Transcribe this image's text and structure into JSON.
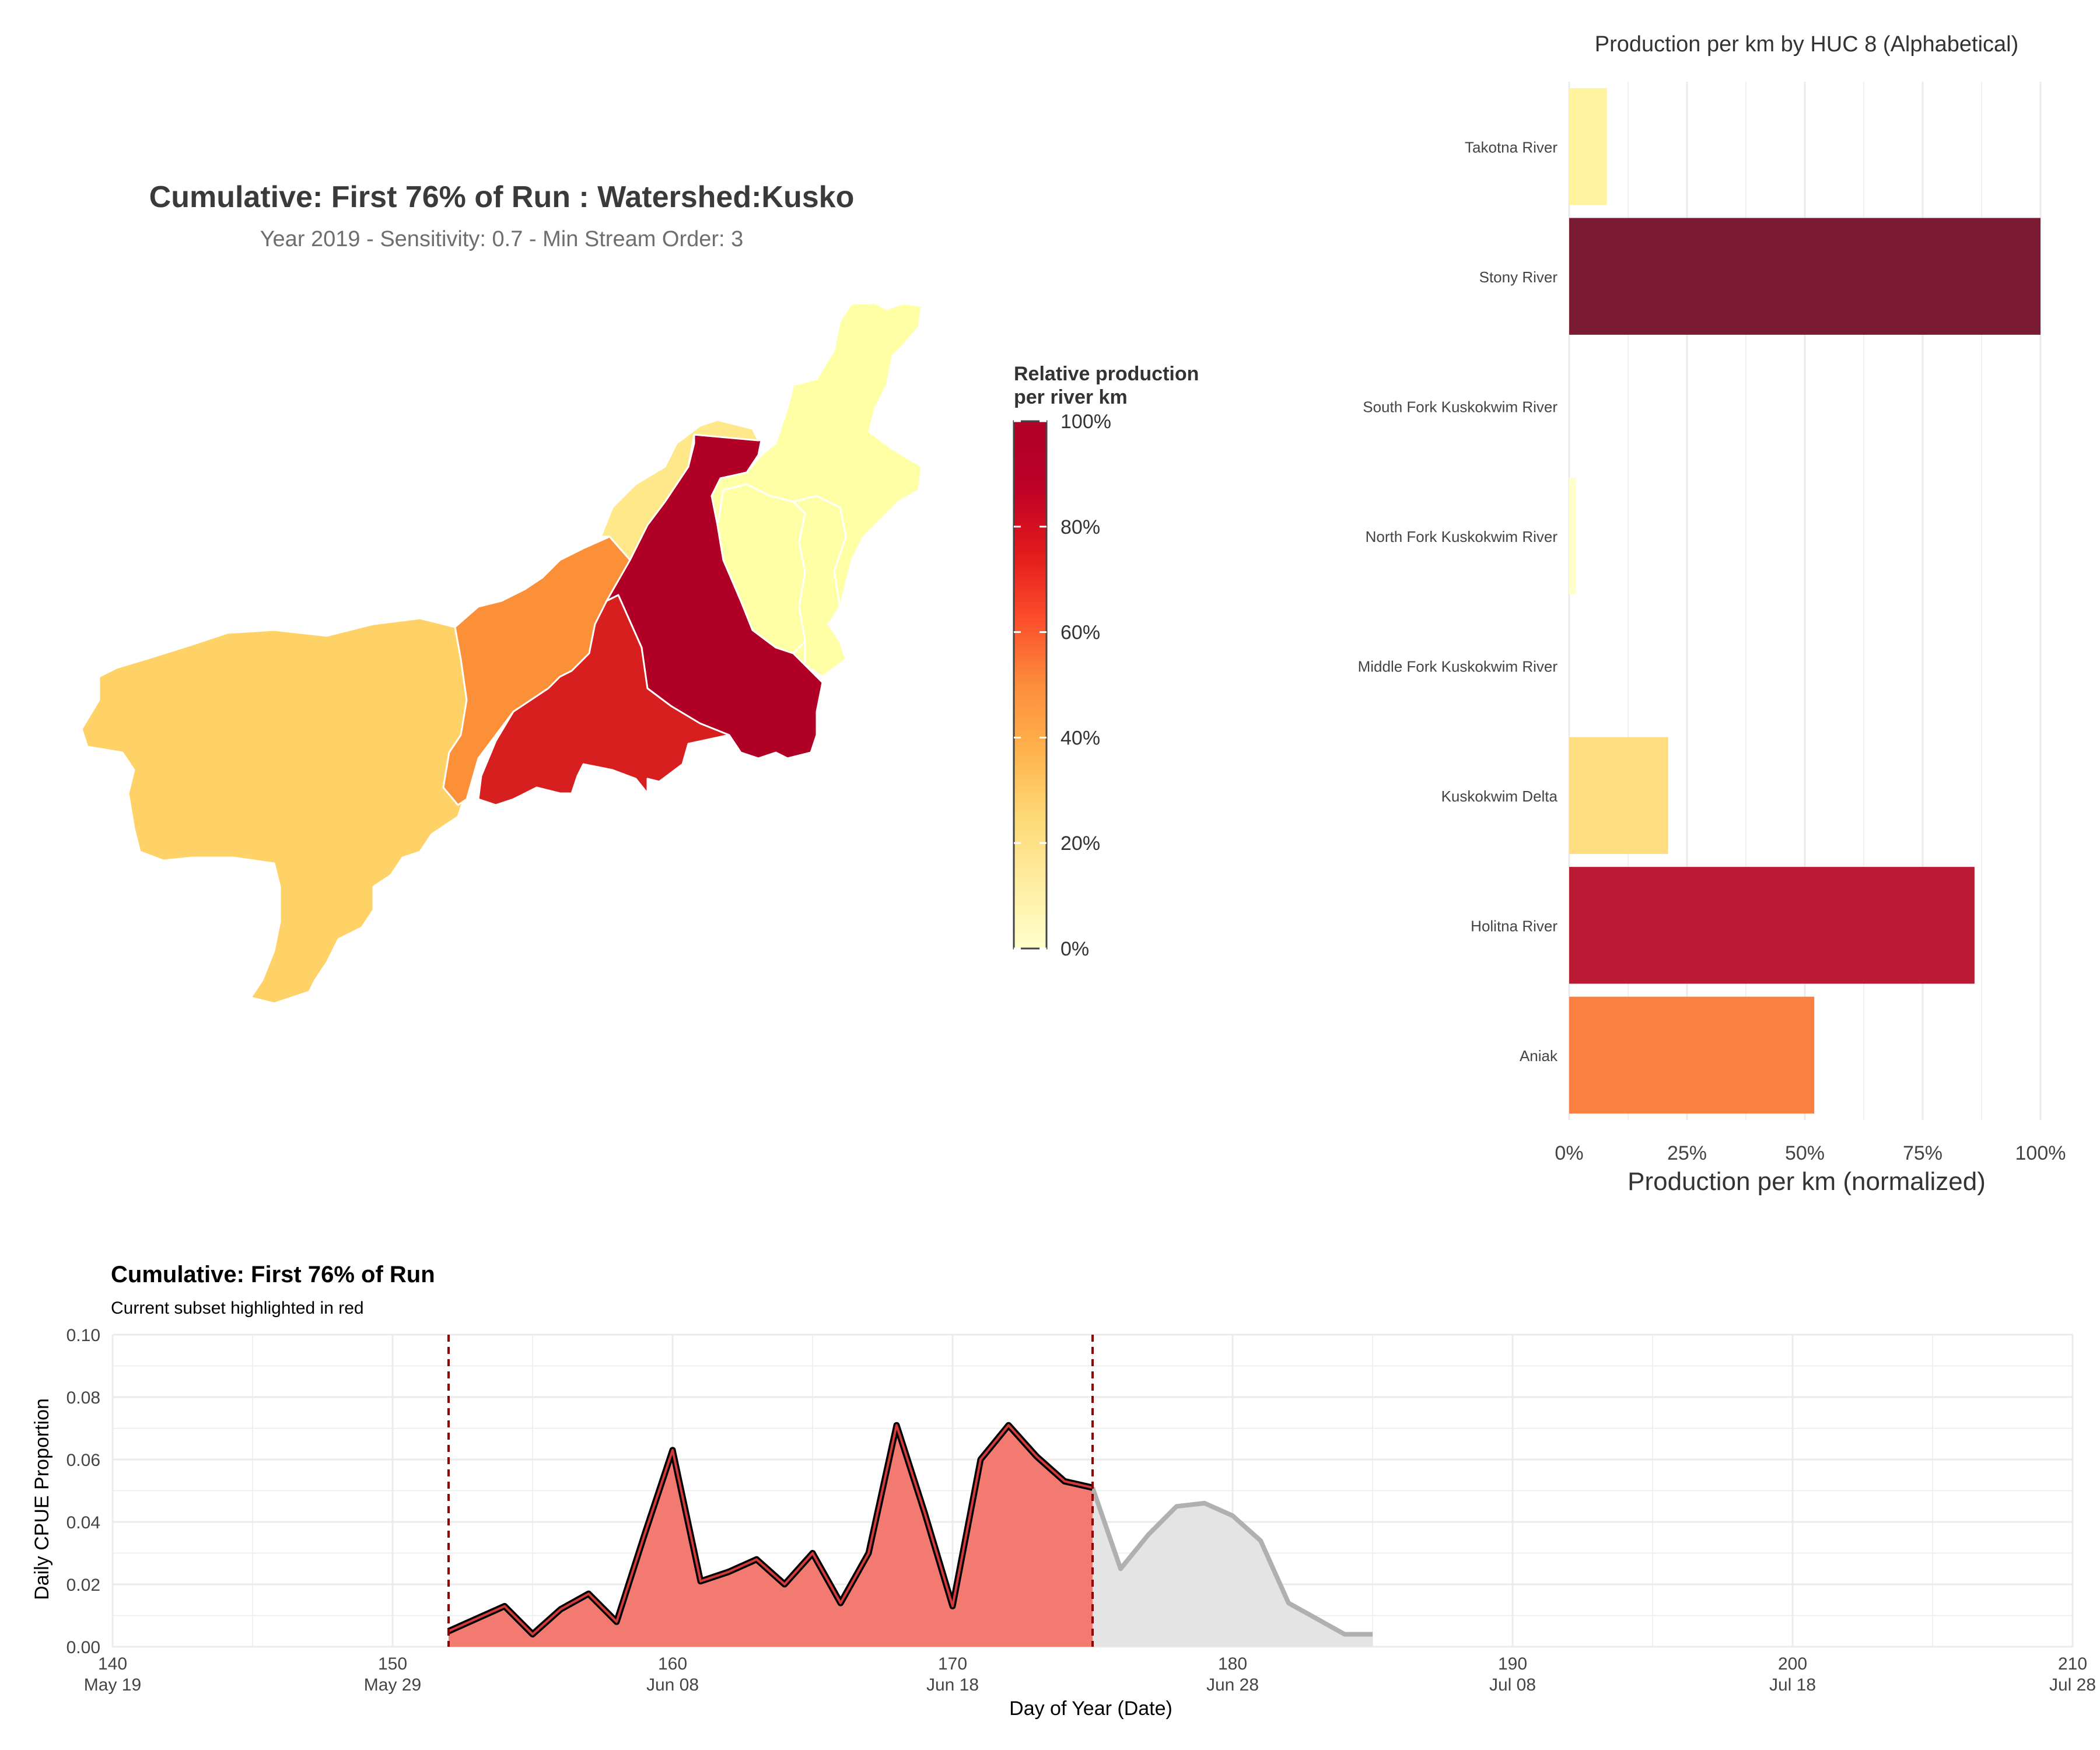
{
  "map_panel": {
    "title": "Cumulative: First 76% of Run : Watershed:Kusko",
    "subtitle": "Year 2019 - Sensitivity: 0.7 - Min Stream Order: 3",
    "legend": {
      "title_line1": "Relative production",
      "title_line2": "per river km",
      "ticks": [
        "100%",
        "80%",
        "60%",
        "40%",
        "20%",
        "0%"
      ],
      "colors": [
        "#ffffcc",
        "#ffeda0",
        "#fed976",
        "#feb24c",
        "#fd8d3c",
        "#fc4e2a",
        "#e31a1c",
        "#bd0026",
        "#b00026"
      ]
    },
    "region_colors": {
      "delta": "#fed266",
      "aniak": "#fb9038",
      "holitna": "#d81f20",
      "stony": "#b00026",
      "takotna": "#ffe88a",
      "north_fork": "#ffffa6",
      "south_fork": "#ffffa6",
      "middle_fork": "#ffffa6"
    }
  },
  "chart_data": [
    {
      "type": "bar",
      "orientation": "horizontal",
      "title": "Production per km by HUC 8 (Alphabetical)",
      "xlabel": "Production per km (normalized)",
      "ylabel": "",
      "x_ticks": [
        "0%",
        "25%",
        "50%",
        "75%",
        "100%"
      ],
      "xlim": [
        0,
        1
      ],
      "categories": [
        "Takotna River",
        "Stony River",
        "South Fork Kuskokwim River",
        "North Fork Kuskokwim River",
        "Middle Fork Kuskokwim River",
        "Kuskokwim Delta",
        "Holitna River",
        "Aniak"
      ],
      "values": [
        0.08,
        1.0,
        0.0,
        0.015,
        0.0,
        0.21,
        0.86,
        0.52
      ],
      "colors": [
        "#fff3a0",
        "#7a1a33",
        "#ffffff",
        "#ffffcc",
        "#ffffff",
        "#fedc80",
        "#bb1a35",
        "#f98040"
      ],
      "grid": true
    },
    {
      "type": "area",
      "title": "Cumulative: First 76% of Run",
      "subtitle": "Current subset highlighted in red",
      "xlabel": "Day of Year (Date)",
      "ylabel": "Daily CPUE Proportion",
      "xlim": [
        140,
        210
      ],
      "ylim": [
        0,
        0.1
      ],
      "x_ticks": [
        {
          "value": 140,
          "label": "140",
          "date": "May 19"
        },
        {
          "value": 150,
          "label": "150",
          "date": "May 29"
        },
        {
          "value": 160,
          "label": "160",
          "date": "Jun 08"
        },
        {
          "value": 170,
          "label": "170",
          "date": "Jun 18"
        },
        {
          "value": 180,
          "label": "180",
          "date": "Jun 28"
        },
        {
          "value": 190,
          "label": "190",
          "date": "Jul 08"
        },
        {
          "value": 200,
          "label": "200",
          "date": "Jul 18"
        },
        {
          "value": 210,
          "label": "210",
          "date": "Jul 28"
        }
      ],
      "y_ticks": [
        "0.00",
        "0.02",
        "0.04",
        "0.06",
        "0.08",
        "0.10"
      ],
      "y_tick_values": [
        0,
        0.02,
        0.04,
        0.06,
        0.08,
        0.1
      ],
      "subset_range": [
        152,
        175
      ],
      "series": [
        {
          "x": [
            152,
            153,
            154,
            155,
            156,
            157,
            158,
            159,
            160,
            161,
            162,
            163,
            164,
            165,
            166,
            167,
            168,
            169,
            170,
            171,
            172,
            173,
            174,
            175,
            176,
            177,
            178,
            179,
            180,
            181,
            182,
            183,
            184,
            185
          ],
          "y": [
            0.005,
            0.009,
            0.013,
            0.004,
            0.012,
            0.017,
            0.008,
            0.036,
            0.063,
            0.021,
            0.024,
            0.028,
            0.02,
            0.03,
            0.014,
            0.03,
            0.071,
            0.043,
            0.013,
            0.06,
            0.071,
            0.061,
            0.053,
            0.051,
            0.025,
            0.036,
            0.045,
            0.046,
            0.042,
            0.034,
            0.014,
            0.009,
            0.004,
            0.004
          ]
        }
      ],
      "colors": {
        "subset_fill": "#f27a70",
        "rest_fill": "#e4e4e4",
        "subset_line": "#000000",
        "rest_line": "#b0b0b0",
        "vline": "#8b0000"
      },
      "grid": true
    }
  ]
}
